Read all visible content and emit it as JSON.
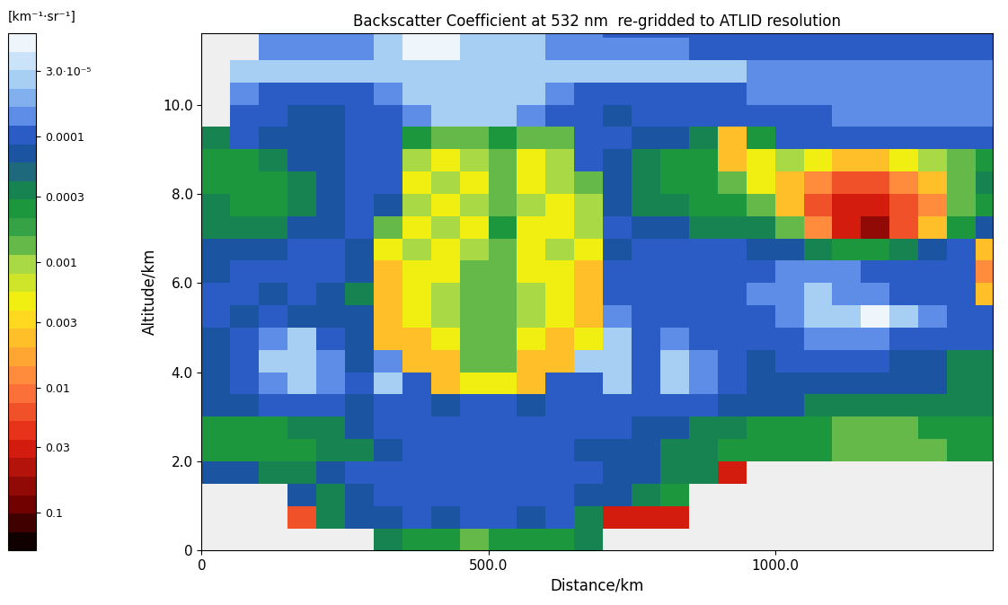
{
  "chart_data": {
    "type": "heatmap",
    "title": "Backscatter Coefficient at 532 nm  re-gridded to ATLID resolution",
    "x_label": "Distance/km",
    "y_label": "Altitude/km",
    "xlim": [
      0,
      1380
    ],
    "ylim": [
      0,
      11.6
    ],
    "xticks": [
      0,
      {
        "value": 500,
        "label": "500.0"
      },
      {
        "value": 1000,
        "label": "1000.0"
      }
    ],
    "yticks": [
      0,
      {
        "value": 2,
        "label": "2.0"
      },
      {
        "value": 4,
        "label": "4.0"
      },
      {
        "value": 6,
        "label": "6.0"
      },
      {
        "value": 8,
        "label": "8.0"
      },
      {
        "value": 10,
        "label": "10.0"
      }
    ],
    "x_edges": [
      0,
      50,
      100,
      150,
      200,
      250,
      300,
      350,
      400,
      450,
      500,
      550,
      600,
      650,
      700,
      750,
      800,
      850,
      900,
      950,
      1000,
      1050,
      1100,
      1150,
      1200,
      1250,
      1300,
      1350,
      1400
    ],
    "y_edges": [
      0,
      0.5,
      1,
      1.5,
      2,
      2.5,
      3,
      3.5,
      4,
      4.5,
      5,
      5.5,
      6,
      6.5,
      7,
      7.5,
      8,
      8.5,
      9,
      9.5,
      10,
      10.5,
      11,
      11.5,
      12
    ],
    "values": [
      [
        null,
        null,
        null,
        null,
        null,
        null,
        0.00025,
        0.0004,
        0.0004,
        0.0007,
        0.0004,
        0.0004,
        0.0004,
        0.00025,
        null,
        null,
        null,
        null,
        null,
        null,
        null,
        null,
        null,
        null,
        null,
        null,
        null,
        null
      ],
      [
        null,
        null,
        null,
        0.015,
        0.00025,
        0.00015,
        0.00015,
        0.0001,
        0.00015,
        0.0001,
        0.0001,
        0.00015,
        0.0001,
        0.00025,
        0.03,
        0.03,
        0.03,
        null,
        null,
        null,
        null,
        null,
        null,
        null,
        null,
        null,
        null,
        null
      ],
      [
        null,
        null,
        null,
        0.00015,
        0.00025,
        0.00015,
        0.0001,
        0.0001,
        0.0001,
        0.0001,
        0.0001,
        0.0001,
        0.0001,
        0.00015,
        0.00015,
        0.00025,
        0.0004,
        null,
        null,
        null,
        null,
        null,
        null,
        null,
        null,
        null,
        null,
        null
      ],
      [
        0.00015,
        0.00015,
        0.00025,
        0.00025,
        0.00015,
        0.0001,
        0.0001,
        0.0001,
        0.0001,
        0.0001,
        0.0001,
        0.0001,
        0.0001,
        0.0001,
        0.00015,
        0.00015,
        0.00025,
        0.00025,
        0.03,
        null,
        null,
        null,
        null,
        null,
        null,
        null,
        null,
        null
      ],
      [
        0.0004,
        0.0004,
        0.0004,
        0.0004,
        0.00025,
        0.00025,
        0.00015,
        0.0001,
        0.0001,
        0.0001,
        0.0001,
        0.0001,
        0.0001,
        0.00015,
        0.00015,
        0.00015,
        0.00025,
        0.00025,
        0.0004,
        0.0004,
        0.0004,
        0.0004,
        0.0007,
        0.0007,
        0.0007,
        0.0007,
        0.0004,
        0.0004
      ],
      [
        0.0004,
        0.0004,
        0.0004,
        0.00025,
        0.00025,
        0.00015,
        0.0001,
        0.0001,
        0.0001,
        0.0001,
        0.0001,
        0.0001,
        0.0001,
        0.0001,
        0.0001,
        0.00015,
        0.00015,
        0.00025,
        0.00025,
        0.0004,
        0.0004,
        0.0004,
        0.0007,
        0.0007,
        0.0007,
        0.0004,
        0.0004,
        0.0004
      ],
      [
        0.00015,
        0.00015,
        0.0001,
        0.0001,
        0.0001,
        0.00015,
        0.0001,
        0.0001,
        0.00015,
        0.0001,
        0.0001,
        0.00015,
        0.0001,
        0.0001,
        0.0001,
        0.0001,
        0.0001,
        0.0001,
        0.00015,
        0.00015,
        0.00015,
        0.00025,
        0.00025,
        0.00025,
        0.00025,
        0.00025,
        0.00025,
        0.00025
      ],
      [
        0.00015,
        0.0001,
        7e-05,
        4e-05,
        7e-05,
        0.0001,
        4e-05,
        0.0001,
        0.0035,
        0.002,
        0.002,
        0.0035,
        0.0001,
        0.0001,
        4e-05,
        0.0001,
        4e-05,
        7e-05,
        0.0001,
        0.00015,
        0.00015,
        0.00015,
        0.00015,
        0.00015,
        0.00015,
        0.00015,
        0.00025,
        0.00025
      ],
      [
        0.00015,
        0.0001,
        4e-05,
        4e-05,
        7e-05,
        0.00015,
        7e-05,
        0.0035,
        0.0035,
        0.0007,
        0.0007,
        0.0035,
        0.0035,
        4e-05,
        4e-05,
        0.0001,
        4e-05,
        7e-05,
        0.0001,
        0.00015,
        0.0001,
        0.0001,
        0.0001,
        0.0001,
        0.00015,
        0.00015,
        0.00025,
        0.00025
      ],
      [
        0.00015,
        0.0001,
        7e-05,
        4e-05,
        0.0001,
        0.00015,
        0.0035,
        0.0035,
        0.002,
        0.0007,
        0.0007,
        0.002,
        0.0035,
        0.002,
        4e-05,
        0.0001,
        7e-05,
        0.0001,
        0.0001,
        0.0001,
        0.0001,
        7e-05,
        7e-05,
        7e-05,
        0.0001,
        0.0001,
        0.0001,
        0.0001
      ],
      [
        0.0001,
        0.00015,
        0.0001,
        0.00015,
        0.00015,
        0.00015,
        0.0035,
        0.002,
        0.0012,
        0.0007,
        0.0007,
        0.0012,
        0.002,
        0.0035,
        7e-05,
        0.0001,
        0.0001,
        0.0001,
        0.0001,
        0.0001,
        7e-05,
        4e-05,
        4e-05,
        2e-05,
        4e-05,
        7e-05,
        0.0001,
        0.0001
      ],
      [
        0.0001,
        0.0001,
        0.00015,
        0.0001,
        0.00015,
        0.00025,
        0.0035,
        0.002,
        0.0012,
        0.0007,
        0.0007,
        0.0012,
        0.002,
        0.0035,
        0.0001,
        0.0001,
        0.0001,
        0.0001,
        0.0001,
        7e-05,
        7e-05,
        4e-05,
        7e-05,
        7e-05,
        0.0001,
        0.0001,
        0.0001,
        0.0035
      ],
      [
        0.00015,
        0.0001,
        0.0001,
        0.0001,
        0.0001,
        0.00015,
        0.0035,
        0.002,
        0.002,
        0.0007,
        0.0007,
        0.002,
        0.002,
        0.0035,
        0.0001,
        0.0001,
        0.0001,
        0.0001,
        0.0001,
        0.0001,
        7e-05,
        7e-05,
        7e-05,
        0.0001,
        0.0001,
        0.0001,
        0.0001,
        0.007
      ],
      [
        0.00015,
        0.00015,
        0.00015,
        0.0001,
        0.0001,
        0.00015,
        0.002,
        0.0012,
        0.002,
        0.0012,
        0.0007,
        0.002,
        0.0012,
        0.002,
        0.00015,
        0.0001,
        0.0001,
        0.0001,
        0.0001,
        0.00015,
        0.00015,
        0.00025,
        0.0004,
        0.0004,
        0.00025,
        0.00015,
        0.0001,
        0.0035
      ],
      [
        0.00025,
        0.00025,
        0.00025,
        0.00015,
        0.00015,
        0.0001,
        0.0007,
        0.002,
        0.0012,
        0.002,
        0.0004,
        0.002,
        0.002,
        0.0012,
        0.0001,
        0.00015,
        0.00015,
        0.00025,
        0.00025,
        0.00025,
        0.0007,
        0.007,
        0.03,
        0.06,
        0.015,
        0.0035,
        0.0004,
        0.00015
      ],
      [
        0.00025,
        0.0004,
        0.0004,
        0.00025,
        0.00015,
        0.0001,
        0.00015,
        0.0012,
        0.002,
        0.0012,
        0.0007,
        0.0012,
        0.002,
        0.0012,
        0.00015,
        0.00025,
        0.00025,
        0.0004,
        0.0004,
        0.0007,
        0.0035,
        0.015,
        0.03,
        0.03,
        0.015,
        0.007,
        0.0007,
        0.0004
      ],
      [
        0.0004,
        0.0004,
        0.0004,
        0.00025,
        0.00015,
        0.0001,
        0.0001,
        0.002,
        0.0012,
        0.002,
        0.0007,
        0.002,
        0.0012,
        0.0007,
        0.00015,
        0.00025,
        0.0004,
        0.0004,
        0.0007,
        0.002,
        0.0035,
        0.007,
        0.015,
        0.015,
        0.007,
        0.0035,
        0.0007,
        0.00025
      ],
      [
        0.0004,
        0.0004,
        0.00025,
        0.00015,
        0.00015,
        0.0001,
        0.0001,
        0.0012,
        0.002,
        0.0012,
        0.0007,
        0.002,
        0.0012,
        0.0001,
        0.00015,
        0.00025,
        0.0004,
        0.0004,
        0.0035,
        0.002,
        0.0012,
        0.002,
        0.0035,
        0.0035,
        0.002,
        0.0012,
        0.0007,
        0.0004
      ],
      [
        0.00025,
        0.0001,
        0.00015,
        0.00015,
        0.00015,
        0.0001,
        0.0001,
        0.0004,
        0.0007,
        0.0007,
        0.0004,
        0.0007,
        0.0007,
        0.0001,
        0.0001,
        0.00015,
        0.00015,
        0.00025,
        0.0035,
        0.0004,
        0.0001,
        0.0001,
        0.0001,
        0.0001,
        0.0001,
        0.0001,
        0.0001,
        0.0001
      ],
      [
        null,
        0.0001,
        0.0001,
        0.00015,
        0.00015,
        0.0001,
        0.0001,
        7e-05,
        4e-05,
        4e-05,
        4e-05,
        7e-05,
        0.0001,
        0.0001,
        0.00015,
        0.0001,
        0.0001,
        0.0001,
        0.0001,
        0.0001,
        0.0001,
        0.0001,
        7e-05,
        7e-05,
        7e-05,
        7e-05,
        7e-05,
        7e-05
      ],
      [
        null,
        7e-05,
        0.0001,
        0.0001,
        0.0001,
        0.0001,
        7e-05,
        4e-05,
        4e-05,
        4e-05,
        4e-05,
        4e-05,
        7e-05,
        0.0001,
        0.0001,
        0.0001,
        0.0001,
        0.0001,
        0.0001,
        7e-05,
        7e-05,
        7e-05,
        7e-05,
        7e-05,
        7e-05,
        7e-05,
        7e-05,
        7e-05
      ],
      [
        null,
        4e-05,
        4e-05,
        4e-05,
        4e-05,
        4e-05,
        4e-05,
        4e-05,
        4e-05,
        4e-05,
        4e-05,
        4e-05,
        4e-05,
        4e-05,
        4e-05,
        4e-05,
        4e-05,
        4e-05,
        4e-05,
        7e-05,
        7e-05,
        7e-05,
        7e-05,
        7e-05,
        7e-05,
        7e-05,
        7e-05,
        7e-05
      ],
      [
        null,
        null,
        7e-05,
        7e-05,
        7e-05,
        7e-05,
        4e-05,
        2e-05,
        2e-05,
        4e-05,
        4e-05,
        4e-05,
        7e-05,
        7e-05,
        7e-05,
        7e-05,
        7e-05,
        0.0001,
        0.0001,
        0.0001,
        0.0001,
        0.0001,
        0.0001,
        0.0001,
        0.0001,
        0.0001,
        0.0001,
        0.0001
      ],
      [
        null,
        null,
        7e-05,
        7e-05,
        7e-05,
        7e-05,
        4e-05,
        2e-05,
        2e-05,
        4e-05,
        4e-05,
        4e-05,
        7e-05,
        7e-05,
        0.0001,
        0.0001,
        0.0001,
        0.0001,
        0.0001,
        0.0001,
        0.0001,
        0.0001,
        0.0001,
        0.0001,
        0.0001,
        0.0001,
        0.0001,
        0.0001
      ]
    ],
    "colorbar": {
      "label": "[km⁻¹·sr⁻¹]",
      "range": [
        1.5e-05,
        0.2
      ],
      "ticks": [
        {
          "value": 3e-05,
          "label": "3.0·10⁻⁵"
        },
        0.0001,
        0.0003,
        0.001,
        0.003,
        0.01,
        0.03,
        0.1
      ]
    }
  }
}
